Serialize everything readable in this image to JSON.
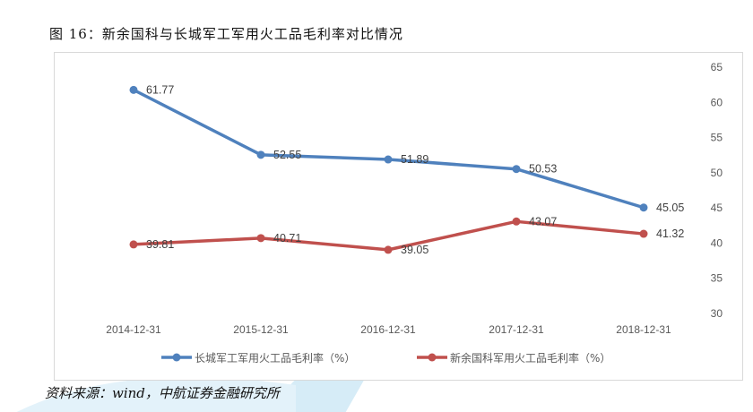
{
  "title": "图 16：新余国科与长城军工军用火工品毛利率对比情况",
  "source": "资料来源：wind，中航证券金融研究所",
  "chart_data": {
    "type": "line",
    "title": "",
    "categories": [
      "2014-12-31",
      "2015-12-31",
      "2016-12-31",
      "2017-12-31",
      "2018-12-31"
    ],
    "series": [
      {
        "name": "长城军工军用火工品毛利率（%）",
        "color": "#4F81BD",
        "values": [
          61.77,
          52.55,
          51.89,
          50.53,
          45.05
        ],
        "labels": [
          "61.77",
          "52.55",
          "51.89",
          "50.53",
          "45.05"
        ]
      },
      {
        "name": "新余国科军用火工品毛利率（%）",
        "color": "#C0504D",
        "values": [
          39.81,
          40.71,
          39.05,
          43.07,
          41.32
        ],
        "labels": [
          "39.81",
          "40.71",
          "39.05",
          "43.07",
          "41.32"
        ]
      }
    ],
    "ylim": [
      30,
      65
    ],
    "yticks": [
      "30",
      "35",
      "40",
      "45",
      "50",
      "55",
      "60",
      "65"
    ],
    "y_axis_side": "right",
    "grid": false,
    "legend": "bottom"
  }
}
